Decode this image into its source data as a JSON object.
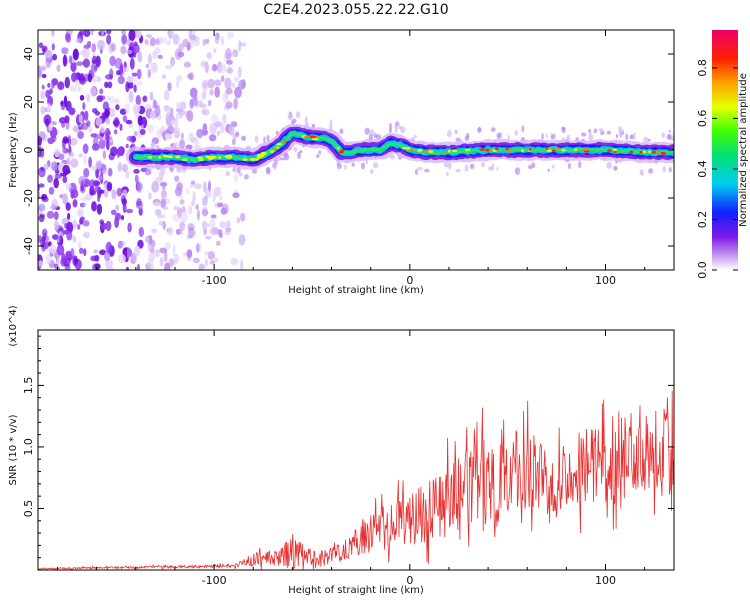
{
  "title": "C2E4.2023.055.22.22.G10",
  "chart_data": [
    {
      "type": "heatmap",
      "xlabel": "Height of straight line (km)",
      "ylabel": "Frequency (Hz)",
      "xlim": [
        -190,
        135
      ],
      "ylim": [
        -50,
        50
      ],
      "x_ticks": [
        -100,
        0,
        100
      ],
      "y_ticks": [
        -40,
        -20,
        0,
        20,
        40
      ],
      "colorbar": {
        "label": "Normalized spectral amplitude",
        "range": [
          0.0,
          0.95
        ],
        "ticks": [
          0.0,
          0.2,
          0.4,
          0.6,
          0.8
        ]
      },
      "ridge_frequency": {
        "x": [
          -140,
          -130,
          -120,
          -110,
          -100,
          -90,
          -80,
          -75,
          -70,
          -65,
          -60,
          -55,
          -50,
          -45,
          -40,
          -35,
          -30,
          -25,
          -20,
          -15,
          -10,
          -5,
          0,
          10,
          20,
          40,
          60,
          80,
          100,
          120,
          135
        ],
        "y": [
          -3,
          -3,
          -3,
          -4,
          -3,
          -3,
          -4,
          -2,
          0,
          3,
          7,
          6,
          5,
          5,
          4,
          -1,
          -1,
          0,
          0,
          0,
          3,
          2,
          0,
          -1,
          -1,
          0,
          0,
          0,
          0,
          -1,
          -1
        ]
      },
      "noise_region_x": [
        -190,
        -90
      ]
    },
    {
      "type": "line",
      "xlabel": "Height of straight line (km)",
      "ylabel": "SNR (10 * v/v)",
      "y_multiplier": "(x10^4)",
      "xlim": [
        -190,
        135
      ],
      "ylim": [
        0,
        1.95
      ],
      "x_ticks": [
        -100,
        0,
        100
      ],
      "y_ticks": [
        0.5,
        1.0,
        1.5
      ],
      "color": "#e83030",
      "envelope": {
        "x": [
          -190,
          -150,
          -100,
          -90,
          -80,
          -75,
          -70,
          -60,
          -50,
          -40,
          -30,
          -20,
          -10,
          0,
          10,
          20,
          30,
          40,
          50,
          60,
          70,
          80,
          90,
          100,
          110,
          120,
          130,
          135
        ],
        "mean": [
          0.01,
          0.02,
          0.03,
          0.04,
          0.08,
          0.1,
          0.09,
          0.14,
          0.08,
          0.12,
          0.2,
          0.3,
          0.35,
          0.42,
          0.5,
          0.58,
          0.65,
          0.72,
          0.78,
          0.8,
          0.75,
          0.78,
          0.85,
          0.88,
          0.95,
          1.0,
          1.05,
          0.9
        ],
        "amplitude": [
          0.01,
          0.015,
          0.02,
          0.03,
          0.1,
          0.12,
          0.1,
          0.25,
          0.15,
          0.12,
          0.2,
          0.3,
          0.35,
          0.4,
          0.5,
          0.55,
          0.6,
          0.75,
          0.7,
          0.6,
          0.55,
          0.55,
          0.55,
          0.6,
          0.7,
          0.65,
          0.85,
          0.6
        ]
      }
    }
  ]
}
